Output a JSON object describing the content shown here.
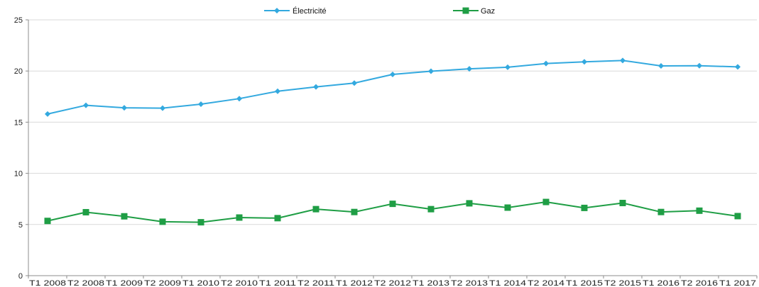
{
  "chart_data": {
    "type": "line",
    "categories": [
      "T1 2008",
      "T2 2008",
      "T1 2009",
      "T2 2009",
      "T1 2010",
      "T2 2010",
      "T1 2011",
      "T2 2011",
      "T1 2012",
      "T2 2012",
      "T1 2013",
      "T2 2013",
      "T1 2014",
      "T2 2014",
      "T1 2015",
      "T2 2015",
      "T1 2016",
      "T2 2016",
      "T1 2017"
    ],
    "series": [
      {
        "name": "Électricité",
        "color": "#33a9df",
        "marker": "diamond",
        "values": [
          15.8,
          16.65,
          16.4,
          16.37,
          16.76,
          17.3,
          18.02,
          18.45,
          18.82,
          19.67,
          19.98,
          20.21,
          20.37,
          20.73,
          20.9,
          21.03,
          20.5,
          20.52,
          20.4
        ]
      },
      {
        "name": "Gaz",
        "color": "#1f9e45",
        "marker": "square",
        "values": [
          5.35,
          6.2,
          5.8,
          5.27,
          5.22,
          5.68,
          5.62,
          6.5,
          6.22,
          7.02,
          6.5,
          7.07,
          6.65,
          7.2,
          6.62,
          7.1,
          6.22,
          6.35,
          5.82
        ]
      }
    ],
    "y_ticks": [
      "0",
      "5",
      "10",
      "15",
      "20",
      "25"
    ],
    "ylim": [
      0,
      25
    ],
    "grid": true,
    "legend_position": "top"
  }
}
